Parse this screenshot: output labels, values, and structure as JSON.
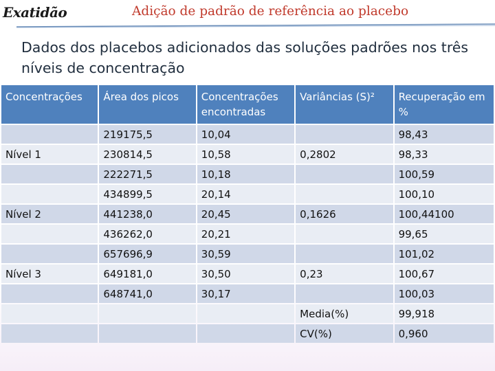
{
  "header": {
    "logo_text": "Exatidão",
    "title": "Adição de padrão de referência ao placebo"
  },
  "subtitle": "Dados dos placebos adicionados das soluções padrões nos três níveis de concentração",
  "table": {
    "columns": [
      "Concentrações",
      "Área dos picos",
      "Concentrações encontradas",
      "Variâncias (S)²",
      "Recuperação em %"
    ],
    "rows": [
      [
        "",
        "219175,5",
        "10,04",
        "",
        "98,43"
      ],
      [
        "Nível 1",
        "230814,5",
        "10,58",
        "0,2802",
        "98,33"
      ],
      [
        "",
        "222271,5",
        "10,18",
        "",
        "100,59"
      ],
      [
        "",
        "434899,5",
        "20,14",
        "",
        "100,10"
      ],
      [
        "Nível 2",
        "441238,0",
        "20,45",
        "0,1626",
        "100,44100"
      ],
      [
        "",
        "436262,0",
        "20,21",
        "",
        "99,65"
      ],
      [
        "",
        "657696,9",
        "30,59",
        "",
        "101,02"
      ],
      [
        "Nível 3",
        "649181,0",
        "30,50",
        "0,23",
        "100,67"
      ],
      [
        "",
        "648741,0",
        "30,17",
        "",
        "100,03"
      ],
      [
        "",
        "",
        "",
        "Media(%)",
        "99,918"
      ],
      [
        "",
        "",
        "",
        "CV(%)",
        "0,960"
      ]
    ]
  },
  "colors": {
    "header_bg": "#4f81bd",
    "row_odd": "#d0d8e8",
    "row_even": "#e9edf4",
    "title": "#c0392b"
  }
}
